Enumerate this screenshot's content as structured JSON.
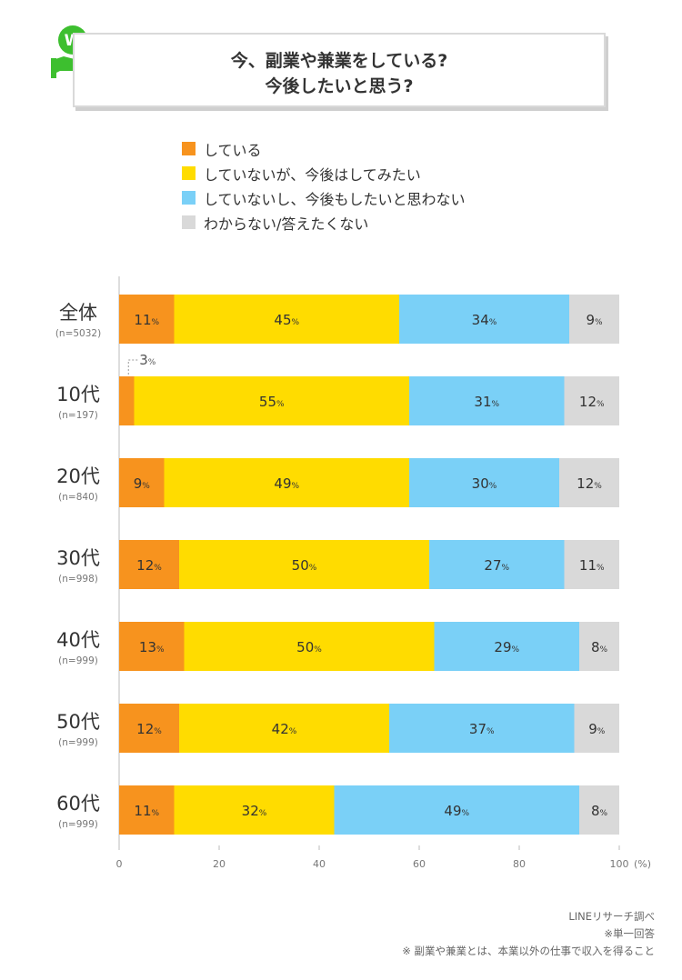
{
  "title": {
    "line1": "今、副業や兼業をしている?",
    "line2": "今後したいと思う?"
  },
  "logo": {
    "letter": "W",
    "icon": "hand-coin-icon",
    "color": "#3dbf2f"
  },
  "legend": [
    {
      "label": "している",
      "color": "#f7931e"
    },
    {
      "label": "していないが、今後はしてみたい",
      "color": "#ffdc00"
    },
    {
      "label": "していないし、今後もしたいと思わない",
      "color": "#7ad0f7"
    },
    {
      "label": "わからない/答えたくない",
      "color": "#d9d9d9"
    }
  ],
  "chart_data": {
    "type": "bar",
    "orientation": "horizontal-stacked-100",
    "categories": [
      "全体",
      "10代",
      "20代",
      "30代",
      "40代",
      "50代",
      "60代"
    ],
    "sample_sizes": [
      "(n=5032)",
      "(n=197)",
      "(n=840)",
      "(n=998)",
      "(n=999)",
      "(n=999)",
      "(n=999)"
    ],
    "series": [
      {
        "name": "している",
        "values": [
          11,
          3,
          9,
          12,
          13,
          12,
          11
        ]
      },
      {
        "name": "していないが、今後はしてみたい",
        "values": [
          45,
          55,
          49,
          50,
          50,
          42,
          32
        ]
      },
      {
        "name": "していないし、今後もしたいと思わない",
        "values": [
          34,
          31,
          30,
          27,
          29,
          37,
          49
        ]
      },
      {
        "name": "わからない/答えたくない",
        "values": [
          9,
          12,
          12,
          11,
          8,
          9,
          8
        ]
      }
    ],
    "x_ticks": [
      "0",
      "20",
      "40",
      "60",
      "80",
      "100"
    ],
    "xlim": [
      0,
      100
    ],
    "unit_label": "(%)",
    "value_suffix": "%",
    "external_label": {
      "text": "3",
      "category_index": 1,
      "series_index": 0
    }
  },
  "footnotes": {
    "source": "LINEリサーチ調べ",
    "note1": "※単一回答",
    "note2": "※ 副業や兼業とは、本業以外の仕事で収入を得ること"
  }
}
